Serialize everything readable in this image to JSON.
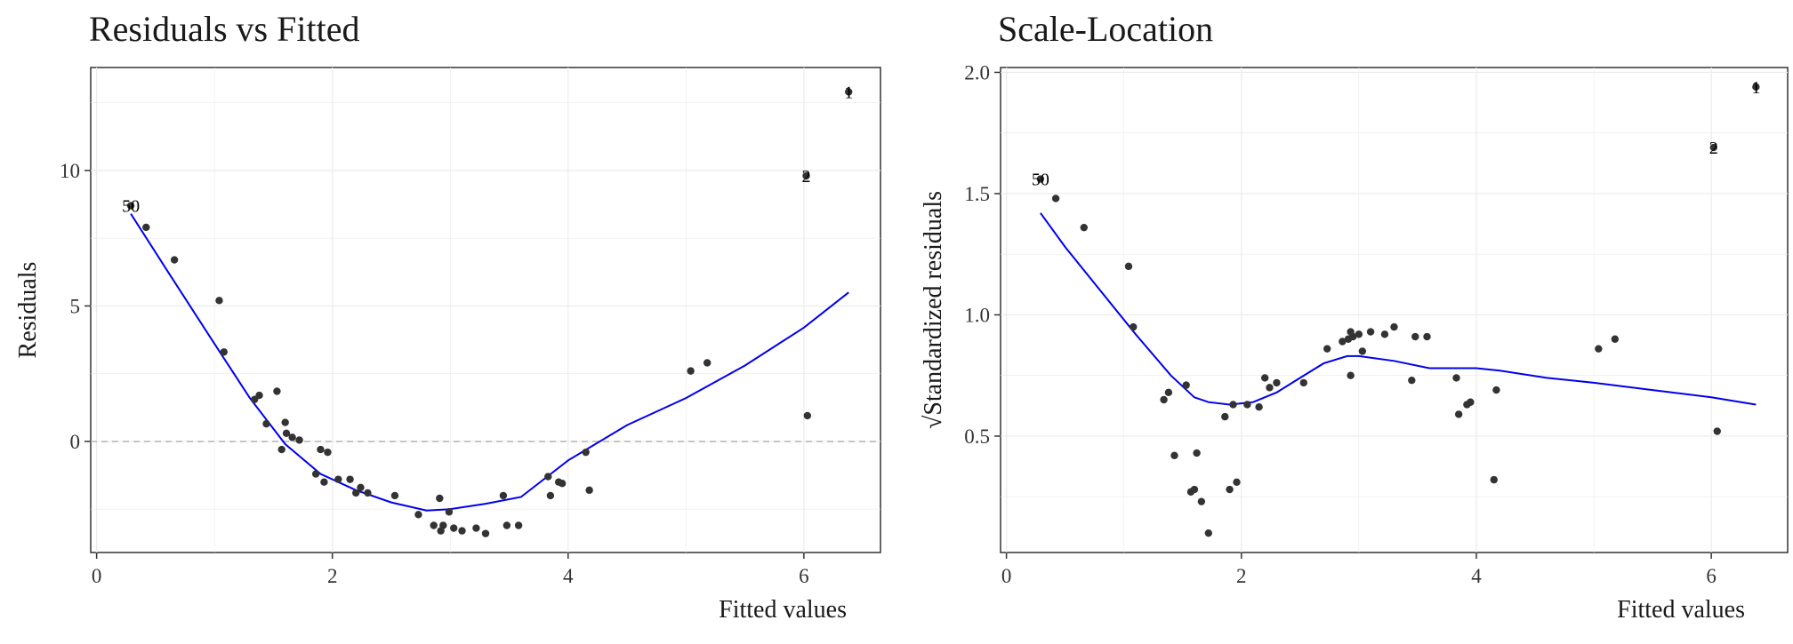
{
  "colors": {
    "point": "#333333",
    "smooth": "#0000ee",
    "grid": "#ebebeb",
    "refline": "#b3b3b3",
    "frame": "#333333"
  },
  "chart_data": [
    {
      "type": "scatter",
      "title": "Residuals vs Fitted",
      "xlabel": "Fitted values",
      "ylabel": "Residuals",
      "xlim": [
        -0.05,
        6.65
      ],
      "ylim": [
        -4.1,
        13.8
      ],
      "xticks": [
        0,
        2,
        4,
        6
      ],
      "yticks": [
        0,
        5,
        10
      ],
      "grid": true,
      "reference_line": {
        "y": 0,
        "style": "dashed"
      },
      "points": {
        "x": [
          0.42,
          0.66,
          1.04,
          1.08,
          1.34,
          1.38,
          1.44,
          1.53,
          1.57,
          1.6,
          1.61,
          1.66,
          1.72,
          1.86,
          1.9,
          1.93,
          1.96,
          2.05,
          2.15,
          2.2,
          2.24,
          2.3,
          2.53,
          2.73,
          2.86,
          2.91,
          2.92,
          2.94,
          2.99,
          3.03,
          3.1,
          3.22,
          3.3,
          3.45,
          3.48,
          3.58,
          3.83,
          3.85,
          3.92,
          3.95,
          4.15,
          4.18,
          5.04,
          5.18,
          6.03
        ],
        "y": [
          7.9,
          6.7,
          5.2,
          3.3,
          1.55,
          1.7,
          0.65,
          1.85,
          -0.3,
          0.7,
          0.3,
          0.15,
          0.05,
          -1.2,
          -0.3,
          -1.5,
          -0.4,
          -1.4,
          -1.4,
          -1.9,
          -1.7,
          -1.9,
          -2.0,
          -2.7,
          -3.1,
          -2.1,
          -3.3,
          -3.1,
          -2.6,
          -3.2,
          -3.3,
          -3.2,
          -3.4,
          -2.0,
          -3.1,
          -3.1,
          -1.3,
          -2.0,
          -1.5,
          -1.55,
          -0.4,
          -1.8,
          2.6,
          2.9,
          0.95
        ]
      },
      "labeled_points": [
        {
          "label": "50",
          "x": 0.29,
          "y": 8.7
        },
        {
          "label": "2",
          "x": 6.02,
          "y": 9.8
        },
        {
          "label": "1",
          "x": 6.38,
          "y": 12.9
        }
      ],
      "smooth": {
        "x": [
          0.29,
          0.6,
          1.0,
          1.3,
          1.6,
          1.9,
          2.2,
          2.5,
          2.8,
          3.0,
          3.3,
          3.6,
          4.0,
          4.5,
          5.0,
          5.5,
          6.0,
          6.38
        ],
        "y": [
          8.4,
          6.3,
          3.6,
          1.6,
          -0.1,
          -1.2,
          -1.8,
          -2.25,
          -2.55,
          -2.5,
          -2.3,
          -2.05,
          -0.7,
          0.6,
          1.6,
          2.8,
          4.2,
          5.5
        ]
      }
    },
    {
      "type": "scatter",
      "title": "Scale-Location",
      "xlabel": "Fitted values",
      "ylabel": "√Standardized residuals",
      "xlim": [
        -0.05,
        6.65
      ],
      "ylim": [
        0.02,
        2.02
      ],
      "xticks": [
        0,
        2,
        4,
        6
      ],
      "yticks": [
        0.5,
        1.0,
        1.5,
        2.0
      ],
      "ytick_labels": [
        "0.5",
        "1.0",
        "1.5",
        "2.0"
      ],
      "grid": true,
      "points": {
        "x": [
          0.42,
          0.66,
          1.04,
          1.08,
          1.34,
          1.38,
          1.43,
          1.53,
          1.57,
          1.6,
          1.62,
          1.66,
          1.72,
          1.86,
          1.9,
          1.93,
          1.96,
          2.05,
          2.15,
          2.2,
          2.24,
          2.3,
          2.53,
          2.73,
          2.86,
          2.91,
          2.93,
          2.93,
          2.95,
          3.0,
          3.03,
          3.1,
          3.22,
          3.3,
          3.45,
          3.48,
          3.58,
          3.83,
          3.85,
          3.92,
          3.95,
          4.15,
          4.17,
          5.04,
          5.18,
          6.05
        ],
        "y": [
          1.48,
          1.36,
          1.2,
          0.95,
          0.65,
          0.68,
          0.42,
          0.71,
          0.27,
          0.28,
          0.43,
          0.23,
          0.1,
          0.58,
          0.28,
          0.63,
          0.31,
          0.63,
          0.62,
          0.74,
          0.7,
          0.72,
          0.72,
          0.86,
          0.89,
          0.9,
          0.75,
          0.93,
          0.91,
          0.92,
          0.85,
          0.93,
          0.92,
          0.95,
          0.73,
          0.91,
          0.91,
          0.74,
          0.59,
          0.63,
          0.64,
          0.32,
          0.69,
          0.86,
          0.9,
          0.52
        ]
      },
      "labeled_points": [
        {
          "label": "50",
          "x": 0.29,
          "y": 1.56
        },
        {
          "label": "2",
          "x": 6.02,
          "y": 1.69
        },
        {
          "label": "1",
          "x": 6.38,
          "y": 1.94
        }
      ],
      "smooth": {
        "x": [
          0.29,
          0.5,
          0.8,
          1.1,
          1.4,
          1.6,
          1.72,
          1.9,
          2.1,
          2.3,
          2.5,
          2.7,
          2.9,
          3.0,
          3.3,
          3.6,
          4.0,
          4.2,
          4.6,
          5.0,
          5.5,
          6.0,
          6.38
        ],
        "y": [
          1.42,
          1.28,
          1.1,
          0.92,
          0.75,
          0.66,
          0.64,
          0.63,
          0.64,
          0.68,
          0.74,
          0.8,
          0.83,
          0.83,
          0.81,
          0.78,
          0.78,
          0.77,
          0.74,
          0.72,
          0.69,
          0.66,
          0.63
        ]
      }
    }
  ]
}
